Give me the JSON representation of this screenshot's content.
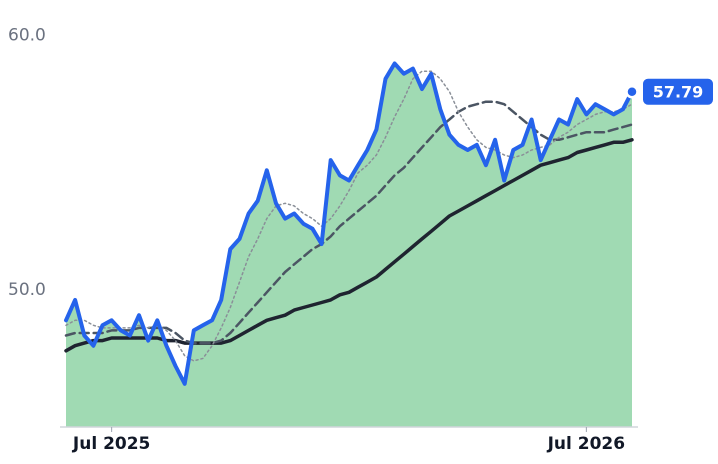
{
  "chart_data": {
    "type": "line",
    "categories": [
      null,
      null,
      null,
      null,
      null,
      "Jul 2025",
      null,
      null,
      null,
      null,
      null,
      null,
      null,
      null,
      null,
      null,
      null,
      null,
      null,
      null,
      null,
      null,
      null,
      null,
      null,
      null,
      null,
      null,
      null,
      null,
      null,
      null,
      null,
      null,
      null,
      null,
      null,
      null,
      null,
      null,
      null,
      null,
      null,
      null,
      null,
      null,
      null,
      null,
      null,
      null,
      null,
      null,
      null,
      null,
      null,
      null,
      null,
      "Jul 2026",
      null,
      null,
      null,
      null,
      null
    ],
    "ylim": [
      44.6,
      61.4
    ],
    "yticks": [
      {
        "value": 50,
        "label": "50.0"
      },
      {
        "value": 60,
        "label": "60.0"
      }
    ],
    "grid": false,
    "area_color": "#8fd3a6",
    "series": [
      {
        "color": "#2563eb",
        "style": "solid",
        "width": 4,
        "area": true,
        "values": [
          48.8,
          49.6,
          48.2,
          47.8,
          48.6,
          48.8,
          48.4,
          48.2,
          49.0,
          48.0,
          48.8,
          47.8,
          47.0,
          46.3,
          48.4,
          48.6,
          48.8,
          49.6,
          51.6,
          52.0,
          53.0,
          53.5,
          54.7,
          53.4,
          52.8,
          53.0,
          52.6,
          52.4,
          51.8,
          55.1,
          54.5,
          54.3,
          54.9,
          55.5,
          56.3,
          58.3,
          58.9,
          58.5,
          58.7,
          57.9,
          58.5,
          57.1,
          56.1,
          55.7,
          55.5,
          55.7,
          54.9,
          55.9,
          54.3,
          55.5,
          55.7,
          56.7,
          55.1,
          55.9,
          56.7,
          56.5,
          57.5,
          56.9,
          57.3,
          57.1,
          56.9,
          57.1,
          57.79
        ]
      },
      {
        "color": "#8a8f98",
        "style": "dotted",
        "width": 1.5,
        "values": [
          48.6,
          48.8,
          48.8,
          48.6,
          48.5,
          48.5,
          48.5,
          48.5,
          48.6,
          48.5,
          48.6,
          48.4,
          48.0,
          47.4,
          47.2,
          47.3,
          47.8,
          48.5,
          49.3,
          50.3,
          51.3,
          52.0,
          52.8,
          53.3,
          53.4,
          53.3,
          53.0,
          52.8,
          52.5,
          52.8,
          53.3,
          53.9,
          54.6,
          54.9,
          55.3,
          56.0,
          56.8,
          57.5,
          58.3,
          58.6,
          58.6,
          58.3,
          57.8,
          57.0,
          56.4,
          55.9,
          55.6,
          55.5,
          55.3,
          55.2,
          55.3,
          55.5,
          55.6,
          55.7,
          56.0,
          56.2,
          56.5,
          56.7,
          56.9,
          57.0,
          57.0,
          57.1,
          57.3
        ]
      },
      {
        "color": "#4b5563",
        "style": "dashed",
        "width": 2.5,
        "values": [
          48.2,
          48.3,
          48.3,
          48.3,
          48.3,
          48.4,
          48.4,
          48.4,
          48.5,
          48.5,
          48.5,
          48.5,
          48.3,
          48.0,
          47.9,
          47.9,
          47.9,
          48.0,
          48.3,
          48.7,
          49.1,
          49.5,
          49.9,
          50.3,
          50.7,
          51.0,
          51.3,
          51.6,
          51.8,
          52.1,
          52.5,
          52.8,
          53.1,
          53.4,
          53.7,
          54.1,
          54.5,
          54.8,
          55.2,
          55.6,
          56.0,
          56.4,
          56.7,
          57.0,
          57.2,
          57.3,
          57.4,
          57.4,
          57.3,
          57.0,
          56.7,
          56.4,
          56.1,
          55.9,
          55.9,
          56.0,
          56.1,
          56.2,
          56.2,
          56.2,
          56.3,
          56.4,
          56.5
        ]
      },
      {
        "color": "#1f2430",
        "style": "solid",
        "width": 3.5,
        "values": [
          47.6,
          47.8,
          47.9,
          48.0,
          48.0,
          48.1,
          48.1,
          48.1,
          48.1,
          48.1,
          48.1,
          48.0,
          48.0,
          47.9,
          47.9,
          47.9,
          47.9,
          47.9,
          48.0,
          48.2,
          48.4,
          48.6,
          48.8,
          48.9,
          49.0,
          49.2,
          49.3,
          49.4,
          49.5,
          49.6,
          49.8,
          49.9,
          50.1,
          50.3,
          50.5,
          50.8,
          51.1,
          51.4,
          51.7,
          52.0,
          52.3,
          52.6,
          52.9,
          53.1,
          53.3,
          53.5,
          53.7,
          53.9,
          54.1,
          54.3,
          54.5,
          54.7,
          54.9,
          55.0,
          55.1,
          55.2,
          55.4,
          55.5,
          55.6,
          55.7,
          55.8,
          55.8,
          55.9
        ]
      }
    ]
  }
}
